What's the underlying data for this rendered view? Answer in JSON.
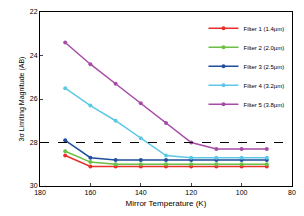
{
  "chart_data": {
    "type": "line",
    "x_label": "Mirror Temperature (K)",
    "y_label": "3σ Limiting Magnitude (AB)",
    "x": [
      170,
      160,
      150,
      140,
      130,
      120,
      110,
      100,
      90
    ],
    "series": [
      {
        "name": "Filter 1 (1.4µm)",
        "color": "#e8302a",
        "marker": "circle",
        "values": [
          28.6,
          29.1,
          29.1,
          29.1,
          29.1,
          29.1,
          29.1,
          29.1,
          29.1
        ]
      },
      {
        "name": "Filter 2 (2.0µm)",
        "color": "#6abf45",
        "marker": "circle",
        "values": [
          28.4,
          28.9,
          29.0,
          29.0,
          29.0,
          29.0,
          29.0,
          29.0,
          29.0
        ]
      },
      {
        "name": "Filter 3 (2.5µm)",
        "color": "#1f4e9c",
        "marker": "circle",
        "values": [
          27.9,
          28.7,
          28.8,
          28.8,
          28.8,
          28.8,
          28.8,
          28.8,
          28.8
        ]
      },
      {
        "name": "Filter 4 (3.2µm)",
        "color": "#5cc8e6",
        "marker": "circle",
        "values": [
          25.5,
          26.3,
          27.0,
          27.8,
          28.6,
          28.7,
          28.7,
          28.7,
          28.7
        ]
      },
      {
        "name": "Filter 5 (3.8µm)",
        "color": "#a64ca6",
        "marker": "circle",
        "values": [
          23.4,
          24.4,
          25.3,
          26.2,
          27.1,
          28.0,
          28.3,
          28.3,
          28.3
        ]
      }
    ],
    "reference_line": {
      "value": 28,
      "color": "#000000",
      "line_style": "dash"
    },
    "xlim": [
      180,
      80
    ],
    "xticks": [
      180,
      160,
      140,
      120,
      100,
      80
    ],
    "ylim": [
      30,
      22
    ],
    "yticks": [
      22,
      24,
      26,
      28,
      30
    ],
    "grid": false,
    "legend": "top right"
  }
}
